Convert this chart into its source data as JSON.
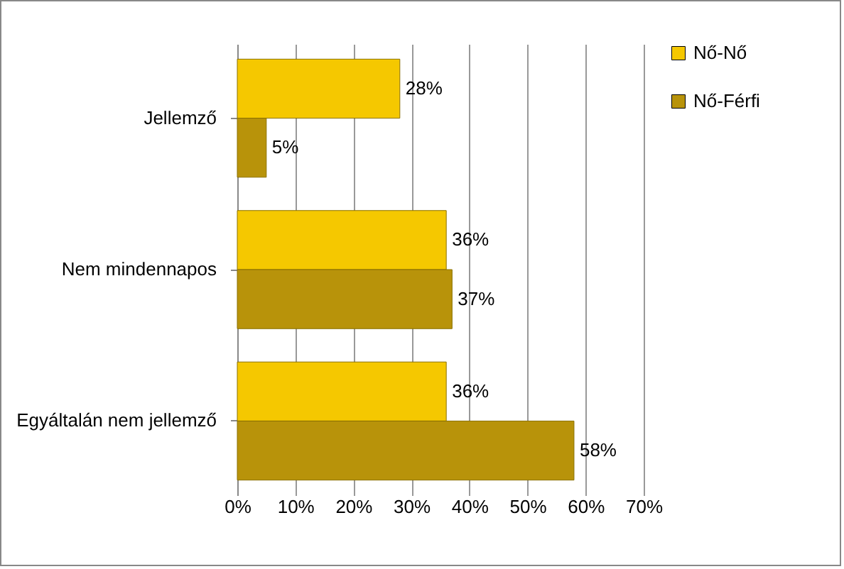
{
  "chart_data": {
    "type": "bar",
    "orientation": "horizontal",
    "categories": [
      "Jellemző",
      "Nem mindennapos",
      "Egyáltalán nem jellemző"
    ],
    "series": [
      {
        "name": "Nő-Nő",
        "color": "#f5c800",
        "values": [
          28,
          36,
          36
        ],
        "value_labels": [
          "28%",
          "36%",
          "36%"
        ]
      },
      {
        "name": "Nő-Férfi",
        "color": "#b8930a",
        "values": [
          5,
          37,
          58
        ],
        "value_labels": [
          "5%",
          "37%",
          "58%"
        ]
      }
    ],
    "xlim": [
      0,
      70
    ],
    "xticks": [
      {
        "value": 0,
        "label": "0%"
      },
      {
        "value": 10,
        "label": "10%"
      },
      {
        "value": 20,
        "label": "20%"
      },
      {
        "value": 30,
        "label": "30%"
      },
      {
        "value": 40,
        "label": "40%"
      },
      {
        "value": 50,
        "label": "50%"
      },
      {
        "value": 60,
        "label": "60%"
      },
      {
        "value": 70,
        "label": "70%"
      }
    ],
    "grid": "x",
    "legend": "right"
  }
}
